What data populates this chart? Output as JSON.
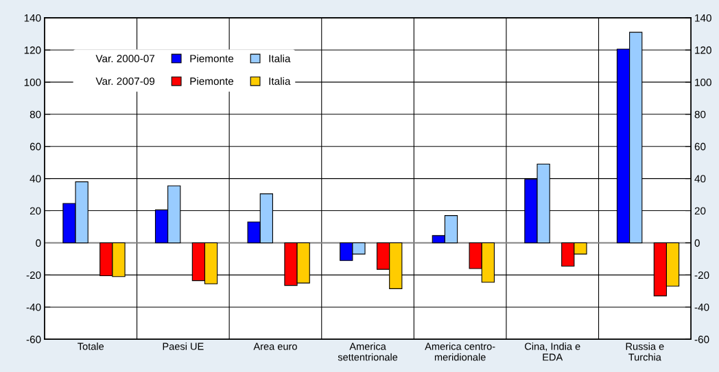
{
  "chart_data": {
    "type": "bar",
    "categories": [
      "Totale",
      "Paesi UE",
      "Area euro",
      "America\nsettentrionale",
      "America centro-\nmeridionale",
      "Cina, India e\nEDA",
      "Russia e\nTurchia"
    ],
    "series": [
      {
        "name": "Piemonte",
        "color": "#0000ff",
        "values": [
          24.5,
          20.5,
          13,
          -11,
          4.5,
          39.5,
          120.5
        ]
      },
      {
        "name": "Italia",
        "color": "#99ccff",
        "values": [
          38,
          35.5,
          30.5,
          -7,
          17,
          49,
          131
        ]
      },
      {
        "name": "Piemonte",
        "color": "#ff0000",
        "values": [
          -20.5,
          -23.5,
          -26.5,
          -16.5,
          -16,
          -14.5,
          -33
        ]
      },
      {
        "name": "Italia",
        "color": "#ffcc00",
        "values": [
          -21,
          -25.5,
          -25,
          -28.5,
          -24.5,
          -7,
          -27
        ]
      }
    ],
    "annotations": [
      "Var. 2000-07",
      "Var. 2007-09"
    ],
    "ylim": [
      -60,
      140
    ],
    "yticks": [
      -60,
      -40,
      -20,
      0,
      20,
      40,
      60,
      80,
      100,
      120,
      140
    ],
    "y2lim": [
      -60,
      140
    ],
    "y2ticks": [
      -60,
      -40,
      -20,
      0,
      20,
      40,
      60,
      80,
      100,
      120,
      140
    ],
    "grid": true,
    "legend": "top left"
  }
}
